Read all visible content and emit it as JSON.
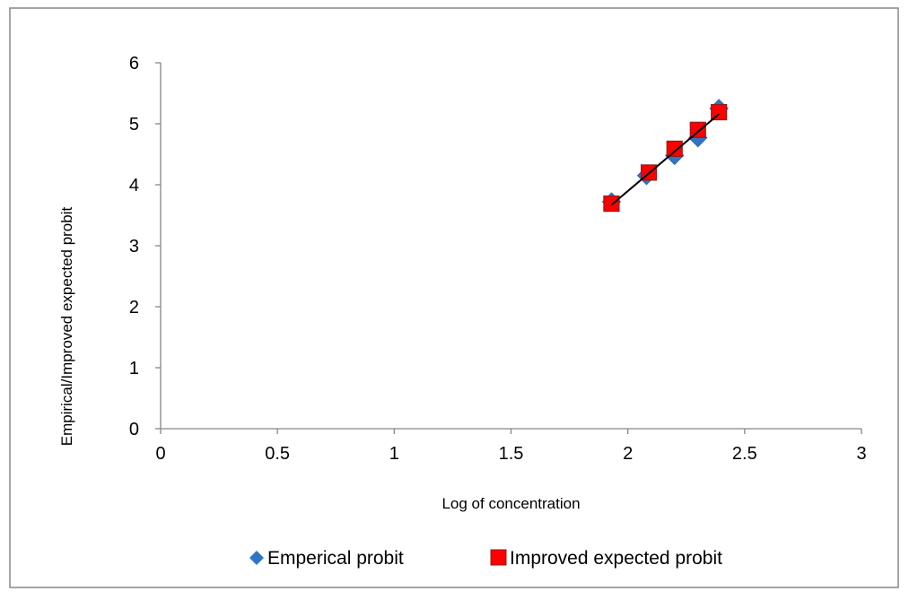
{
  "chart_data": {
    "type": "scatter",
    "xlabel": "Log of concentration",
    "ylabel": "Empirical/Improved expected probit",
    "xlim": [
      0,
      3
    ],
    "ylim": [
      0,
      6
    ],
    "xticks": [
      0,
      0.5,
      1,
      1.5,
      2,
      2.5,
      3
    ],
    "yticks": [
      0,
      1,
      2,
      3,
      4,
      5,
      6
    ],
    "xtick_labels": [
      "0",
      "0.5",
      "1",
      "1.5",
      "2",
      "2.5",
      "3"
    ],
    "ytick_labels": [
      "0",
      "1",
      "2",
      "3",
      "4",
      "5",
      "6"
    ],
    "grid": false,
    "legend_position": "bottom",
    "series": [
      {
        "name": "Emperical probit",
        "marker": "diamond",
        "color": "#2e75c6",
        "points": [
          {
            "x": 1.93,
            "y": 3.72
          },
          {
            "x": 2.08,
            "y": 4.15
          },
          {
            "x": 2.2,
            "y": 4.48
          },
          {
            "x": 2.3,
            "y": 4.77
          },
          {
            "x": 2.39,
            "y": 5.25
          }
        ]
      },
      {
        "name": "Improved expected probit",
        "marker": "square",
        "color": "#ff0000",
        "points": [
          {
            "x": 1.93,
            "y": 3.69
          },
          {
            "x": 2.09,
            "y": 4.2
          },
          {
            "x": 2.2,
            "y": 4.59
          },
          {
            "x": 2.3,
            "y": 4.9
          },
          {
            "x": 2.39,
            "y": 5.19
          }
        ]
      }
    ],
    "trendline": {
      "color": "#000000",
      "from": {
        "x": 1.93,
        "y": 3.67
      },
      "to": {
        "x": 2.39,
        "y": 5.16
      }
    }
  }
}
